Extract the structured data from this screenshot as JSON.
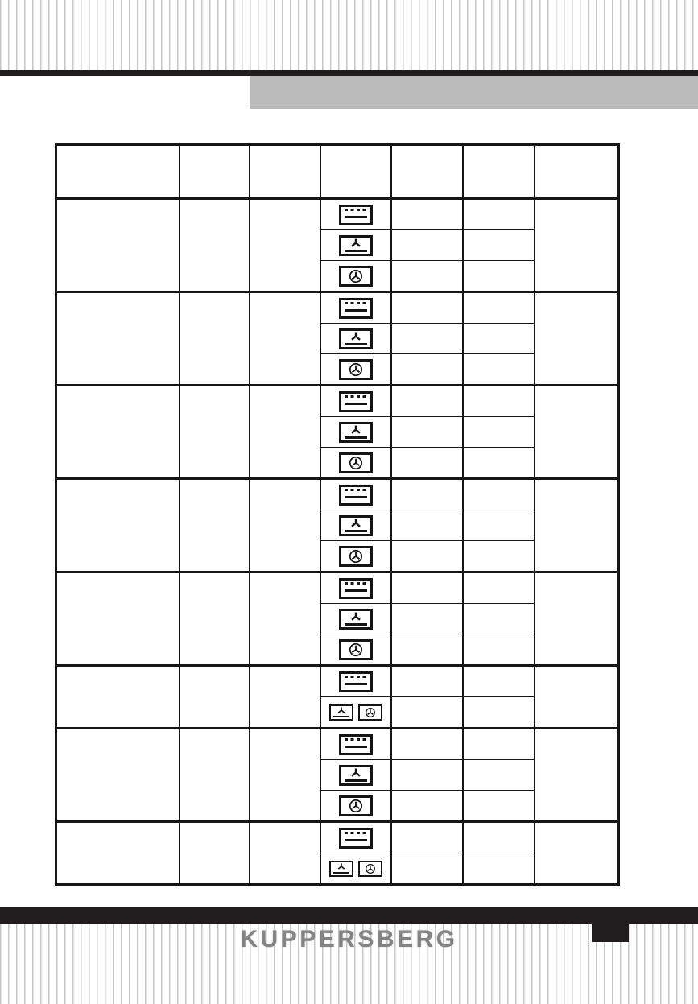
{
  "brand": {
    "logo_text": "KUPPERSBERG"
  },
  "colors": {
    "black_bar": "#211d1e",
    "gray_title_band": "#bababa",
    "stripe_gray": "#c6c6c6",
    "table_line": "#161616",
    "logo_gray": "#848484"
  },
  "icons": {
    "top_bottom_heat": "conventional-heating-icon",
    "bottom_heat_fan": "bottom-heat-fan-icon",
    "fan": "convection-fan-icon"
  },
  "table": {
    "header": [
      "",
      "",
      "",
      "",
      "",
      "",
      ""
    ],
    "groups": [
      {
        "rows": [
          {
            "icons": [
              "top_bottom_heat"
            ]
          },
          {
            "icons": [
              "bottom_heat_fan"
            ]
          },
          {
            "icons": [
              "fan"
            ]
          }
        ]
      },
      {
        "rows": [
          {
            "icons": [
              "top_bottom_heat"
            ]
          },
          {
            "icons": [
              "bottom_heat_fan"
            ]
          },
          {
            "icons": [
              "fan"
            ]
          }
        ]
      },
      {
        "rows": [
          {
            "icons": [
              "top_bottom_heat"
            ]
          },
          {
            "icons": [
              "bottom_heat_fan"
            ]
          },
          {
            "icons": [
              "fan"
            ]
          }
        ]
      },
      {
        "rows": [
          {
            "icons": [
              "top_bottom_heat"
            ]
          },
          {
            "icons": [
              "bottom_heat_fan"
            ]
          },
          {
            "icons": [
              "fan"
            ]
          }
        ]
      },
      {
        "rows": [
          {
            "icons": [
              "top_bottom_heat"
            ]
          },
          {
            "icons": [
              "bottom_heat_fan"
            ]
          },
          {
            "icons": [
              "fan"
            ]
          }
        ]
      },
      {
        "rows": [
          {
            "icons": [
              "top_bottom_heat"
            ]
          },
          {
            "icons": [
              "bottom_heat_fan",
              "fan"
            ]
          }
        ]
      },
      {
        "rows": [
          {
            "icons": [
              "top_bottom_heat"
            ]
          },
          {
            "icons": [
              "bottom_heat_fan"
            ]
          },
          {
            "icons": [
              "fan"
            ]
          }
        ]
      },
      {
        "rows": [
          {
            "icons": [
              "top_bottom_heat"
            ]
          },
          {
            "icons": [
              "bottom_heat_fan",
              "fan"
            ]
          }
        ]
      }
    ]
  }
}
